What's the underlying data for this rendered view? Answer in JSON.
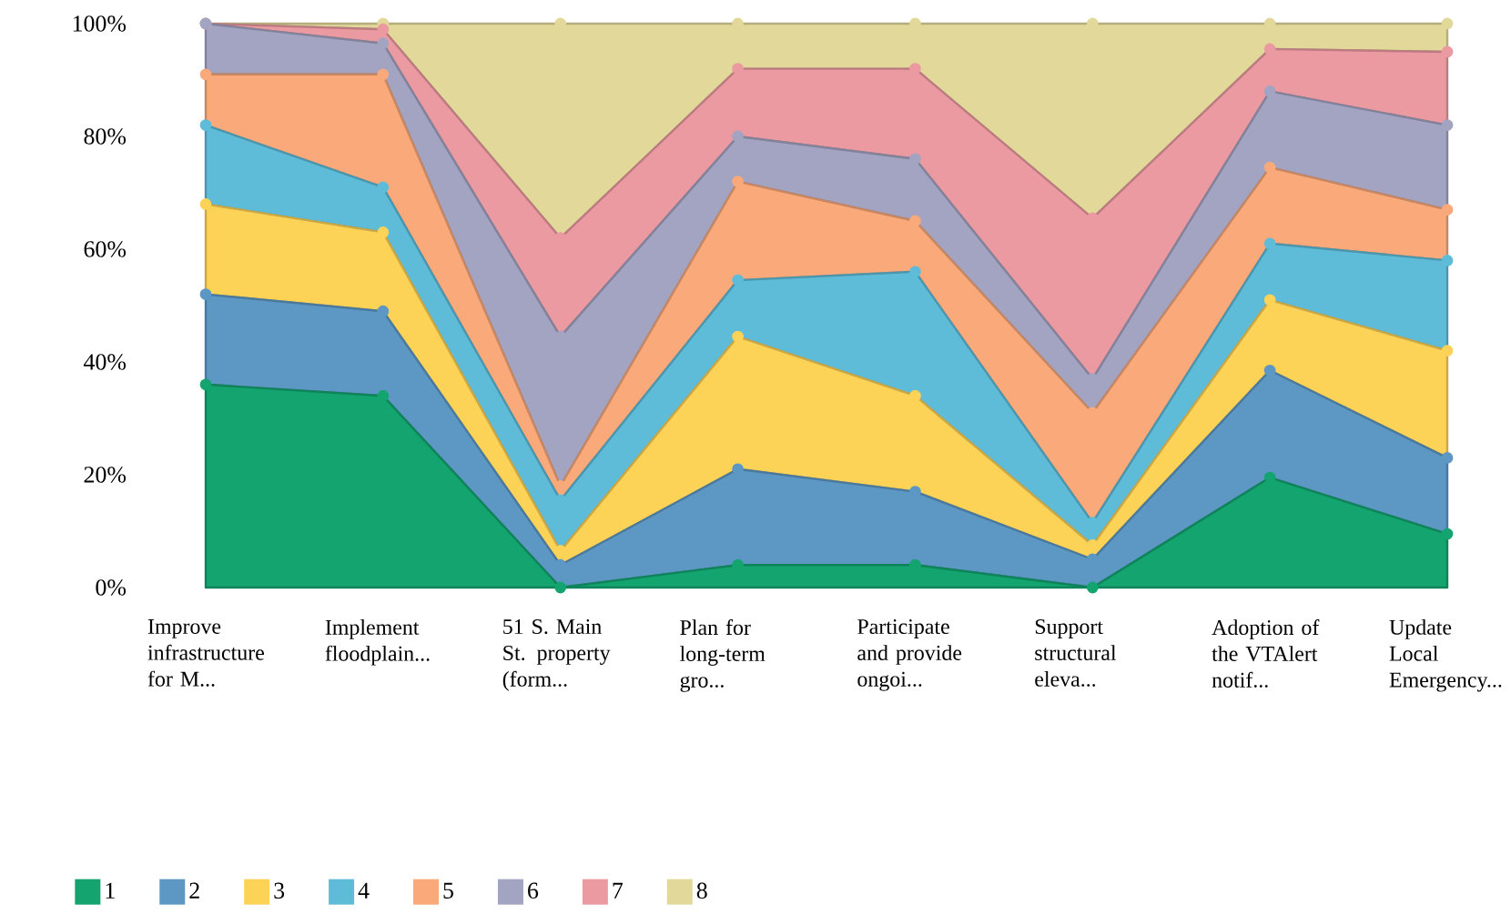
{
  "chart_data": {
    "type": "area",
    "stacked": true,
    "legend": "bottom",
    "marker": "circle",
    "line_style": "solid",
    "categories": [
      "Improve infrastructure for M...",
      "Implement floodplain...",
      "51 S. Main St. property (form...",
      "Plan for long-term gro...",
      "Participate and provide ongoi...",
      "Support structural eleva...",
      "Adoption of the VTAlert notif...",
      "Update Local Emergency..."
    ],
    "ylim": [
      0,
      100
    ],
    "yticks": [
      {
        "value": 0,
        "label": "0%"
      },
      {
        "value": 20,
        "label": "20%"
      },
      {
        "value": 40,
        "label": "40%"
      },
      {
        "value": 60,
        "label": "60%"
      },
      {
        "value": 80,
        "label": "80%"
      },
      {
        "value": 100,
        "label": "100%"
      }
    ],
    "series": [
      {
        "name": "1",
        "color": "#13a46f",
        "values": [
          36,
          34,
          0,
          4,
          4,
          0,
          19.5,
          9.5
        ]
      },
      {
        "name": "2",
        "color": "#5d97c4",
        "values": [
          16,
          15,
          4,
          17,
          13,
          5,
          19,
          13.5
        ]
      },
      {
        "name": "3",
        "color": "#fcd257",
        "values": [
          16,
          14,
          2.5,
          23.5,
          17,
          2.5,
          12.5,
          19
        ]
      },
      {
        "name": "4",
        "color": "#5fbcd8",
        "values": [
          14,
          8,
          9,
          10,
          22,
          4,
          10,
          16
        ]
      },
      {
        "name": "5",
        "color": "#f9a97a",
        "values": [
          9,
          20,
          2.5,
          17.5,
          9,
          19.5,
          13.5,
          9
        ]
      },
      {
        "name": "6",
        "color": "#a3a3c2",
        "values": [
          9,
          5.5,
          26.5,
          8,
          11,
          6,
          13.5,
          15
        ]
      },
      {
        "name": "7",
        "color": "#ea9aa0",
        "values": [
          0,
          2.5,
          17.5,
          12,
          16,
          28.5,
          7.5,
          13
        ]
      },
      {
        "name": "8",
        "color": "#e2d89a",
        "values": [
          0,
          1,
          38,
          8,
          8,
          34.5,
          4.5,
          5
        ]
      }
    ]
  }
}
